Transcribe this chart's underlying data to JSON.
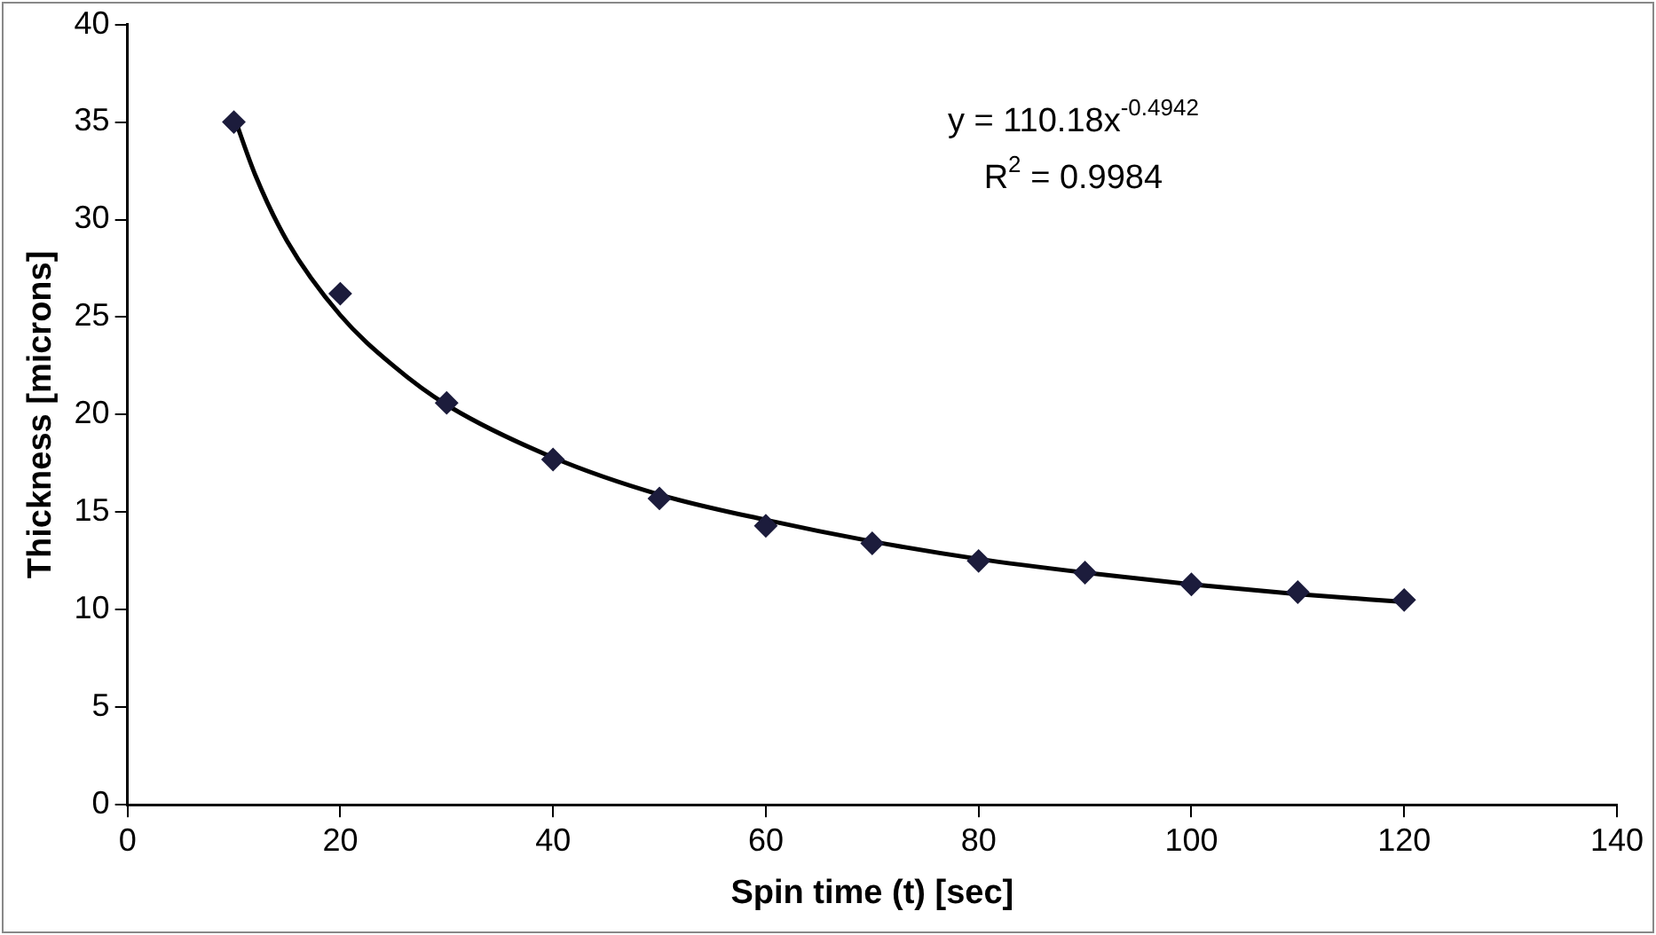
{
  "chart_data": {
    "type": "scatter",
    "xlabel": "Spin time (t) [sec]",
    "ylabel": "Thickness [microns]",
    "xlim": [
      0,
      140
    ],
    "xticks": [
      0,
      20,
      40,
      60,
      80,
      100,
      120,
      140
    ],
    "ylim": [
      0,
      40
    ],
    "yticks": [
      0,
      5,
      10,
      15,
      20,
      25,
      30,
      35,
      40
    ],
    "grid": false,
    "legend": false,
    "marker": "diamond",
    "annotations": [
      "y = 110.18x$^{-0.4942}$",
      "R$^{2}$ = 0.9984"
    ],
    "series": [
      {
        "color": "#1c1c3c",
        "x": [
          10,
          20,
          30,
          40,
          50,
          60,
          70,
          80,
          90,
          100,
          110,
          120
        ],
        "values": [
          35,
          26.2,
          20.6,
          17.7,
          15.7,
          14.3,
          13.4,
          12.5,
          11.9,
          11.3,
          10.9,
          10.5
        ]
      },
      {
        "type": "line",
        "color": "#000000",
        "line_style": "solid",
        "marker": "none",
        "x": [
          10,
          12,
          15,
          20,
          25,
          30,
          40,
          50,
          60,
          70,
          80,
          90,
          100,
          110,
          120
        ],
        "values": [
          35.3,
          32.3,
          28.9,
          25.1,
          22.5,
          20.5,
          17.8,
          15.9,
          14.6,
          13.5,
          12.6,
          11.9,
          11.3,
          10.8,
          10.4
        ]
      }
    ]
  }
}
